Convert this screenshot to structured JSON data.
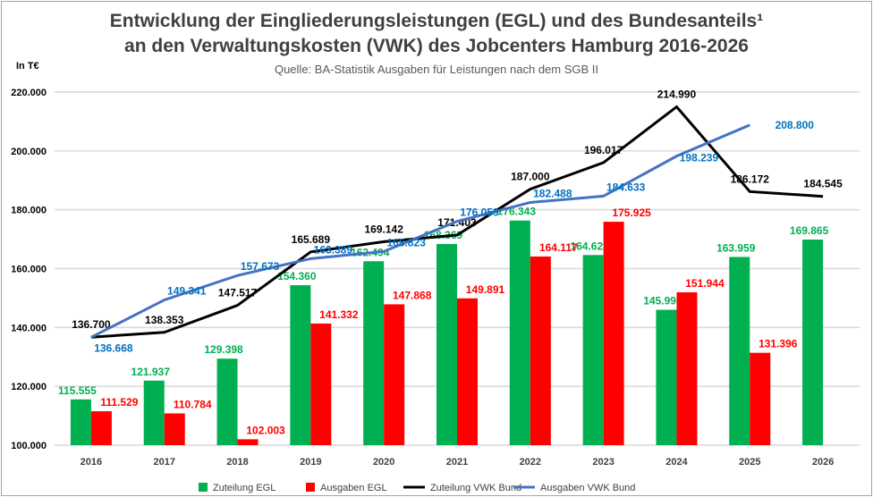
{
  "chart_data": {
    "type": "bar",
    "title_line1": "Entwicklung der Eingliederungsleistungen (EGL) und des Bundesanteils¹",
    "title_line2": "an den Verwaltungskosten (VWK) des Jobcenters Hamburg 2016-2026",
    "subtitle": "Quelle: BA-Statistik Ausgaben für Leistungen nach dem SGB II",
    "ylabel": "In T€",
    "ylim": [
      100000,
      220000
    ],
    "yticks": [
      "100.000",
      "120.000",
      "140.000",
      "160.000",
      "180.000",
      "200.000",
      "220.000"
    ],
    "grid": true,
    "legend_position": "bottom",
    "categories": [
      "2016",
      "2017",
      "2018",
      "2019",
      "2020",
      "2021",
      "2022",
      "2023",
      "2024",
      "2025",
      "2026"
    ],
    "series": [
      {
        "name": "Zuteilung EGL",
        "kind": "bar",
        "color": "#00b050",
        "values": [
          115555,
          121937,
          129398,
          154360,
          162494,
          168369,
          176343,
          164621,
          145997,
          163959,
          169865
        ],
        "labels": [
          "115.555",
          "121.937",
          "129.398",
          "154.360",
          "162.494",
          "168.369",
          "176.343",
          "164.621",
          "145.997",
          "163.959",
          "169.865"
        ]
      },
      {
        "name": "Ausgaben EGL",
        "kind": "bar",
        "color": "#ff0000",
        "values": [
          111529,
          110784,
          102003,
          141332,
          147868,
          149891,
          164117,
          175925,
          151944,
          131396,
          null
        ],
        "labels": [
          "111.529",
          "110.784",
          "102.003",
          "141.332",
          "147.868",
          "149.891",
          "164.117",
          "175.925",
          "151.944",
          "131.396",
          null
        ]
      },
      {
        "name": "Zuteilung VWK Bund",
        "kind": "line",
        "color": "#000000",
        "values": [
          136700,
          138353,
          147517,
          165689,
          169142,
          171403,
          187000,
          196017,
          214990,
          186172,
          184545
        ],
        "labels": [
          "136.700",
          "138.353",
          "147.517",
          "165.689",
          "169.142",
          "171.403",
          "187.000",
          "196.017",
          "214.990",
          "186.172",
          "184.545"
        ]
      },
      {
        "name": "Ausgaben VWK Bund",
        "kind": "line",
        "color": "#4472c4",
        "label_color": "#0070c0",
        "values": [
          136668,
          149341,
          157673,
          163389,
          165823,
          176059,
          182488,
          184633,
          198239,
          208800,
          null
        ],
        "labels": [
          "136.668",
          "149.341",
          "157.673",
          "163.389",
          "165.823",
          "176.059",
          "182.488",
          "184.633",
          "198.239",
          "208.800",
          null
        ]
      }
    ]
  }
}
